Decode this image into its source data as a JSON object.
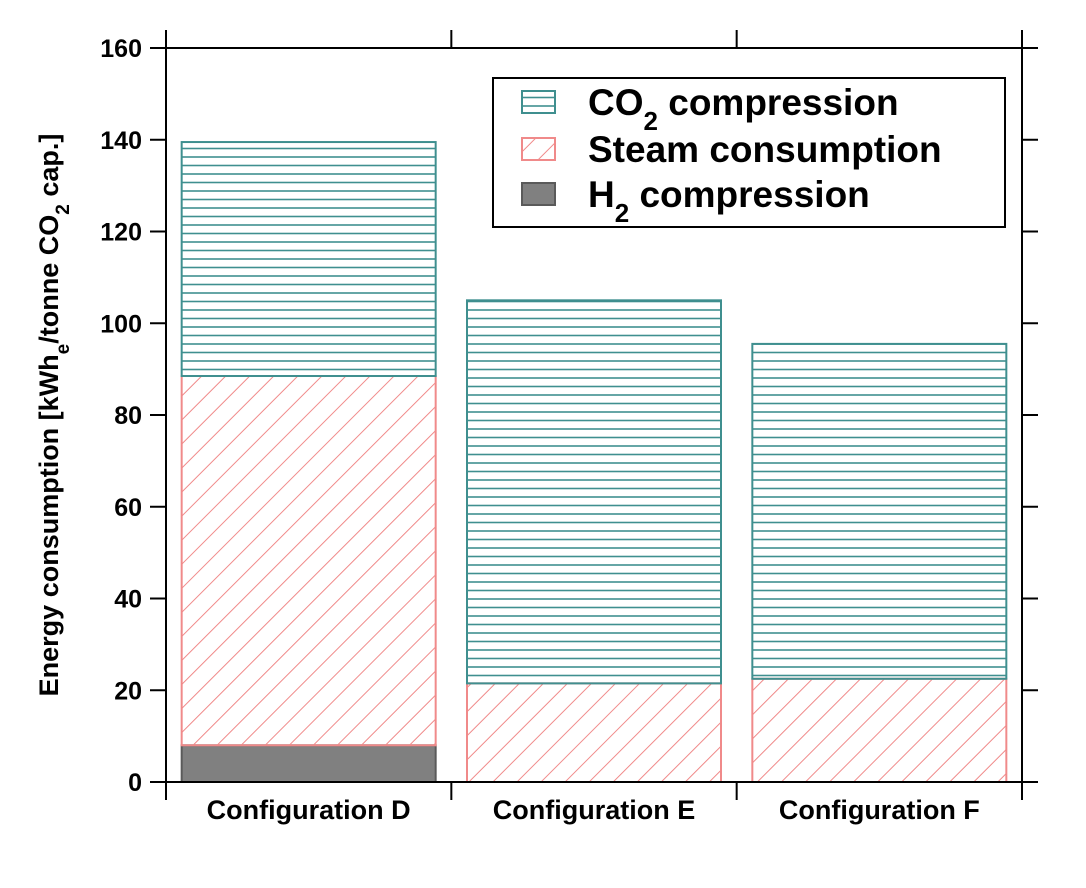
{
  "chart_data": {
    "type": "bar",
    "stacked": true,
    "title": "",
    "xlabel": "",
    "ylabel": {
      "parts": [
        {
          "text": "Energy consumption [kWh"
        },
        {
          "text": "e",
          "sub": true
        },
        {
          "text": "/tonne CO"
        },
        {
          "text": "2",
          "sub": true
        },
        {
          "text": " cap.]"
        }
      ]
    },
    "ylim": [
      0,
      160
    ],
    "yticks": [
      0,
      20,
      40,
      60,
      80,
      100,
      120,
      140,
      160
    ],
    "grid": false,
    "legend_position": "top-right",
    "categories": [
      "Configuration D",
      "Configuration E",
      "Configuration F"
    ],
    "series": [
      {
        "key": "h2",
        "name": "H2 compression",
        "label_parts": [
          {
            "text": "H"
          },
          {
            "text": "2",
            "sub": true
          },
          {
            "text": " compression"
          }
        ],
        "values": [
          8,
          0,
          0
        ],
        "color": "#808080",
        "edge": "#5a5a5a",
        "pattern": "solid"
      },
      {
        "key": "steam",
        "name": "Steam consumption",
        "label_parts": [
          {
            "text": "Steam consumption"
          }
        ],
        "values": [
          80.5,
          21.5,
          22.5
        ],
        "color": "#f08a8a",
        "edge": "#f08a8a",
        "pattern": "diagonal"
      },
      {
        "key": "co2",
        "name": "CO2 compression",
        "label_parts": [
          {
            "text": "CO"
          },
          {
            "text": "2",
            "sub": true
          },
          {
            "text": " compression"
          }
        ],
        "values": [
          51,
          83.5,
          73
        ],
        "color": "#3f8f8f",
        "edge": "#3f8f8f",
        "pattern": "horizontal"
      }
    ],
    "legend_order": [
      "co2",
      "steam",
      "h2"
    ]
  }
}
